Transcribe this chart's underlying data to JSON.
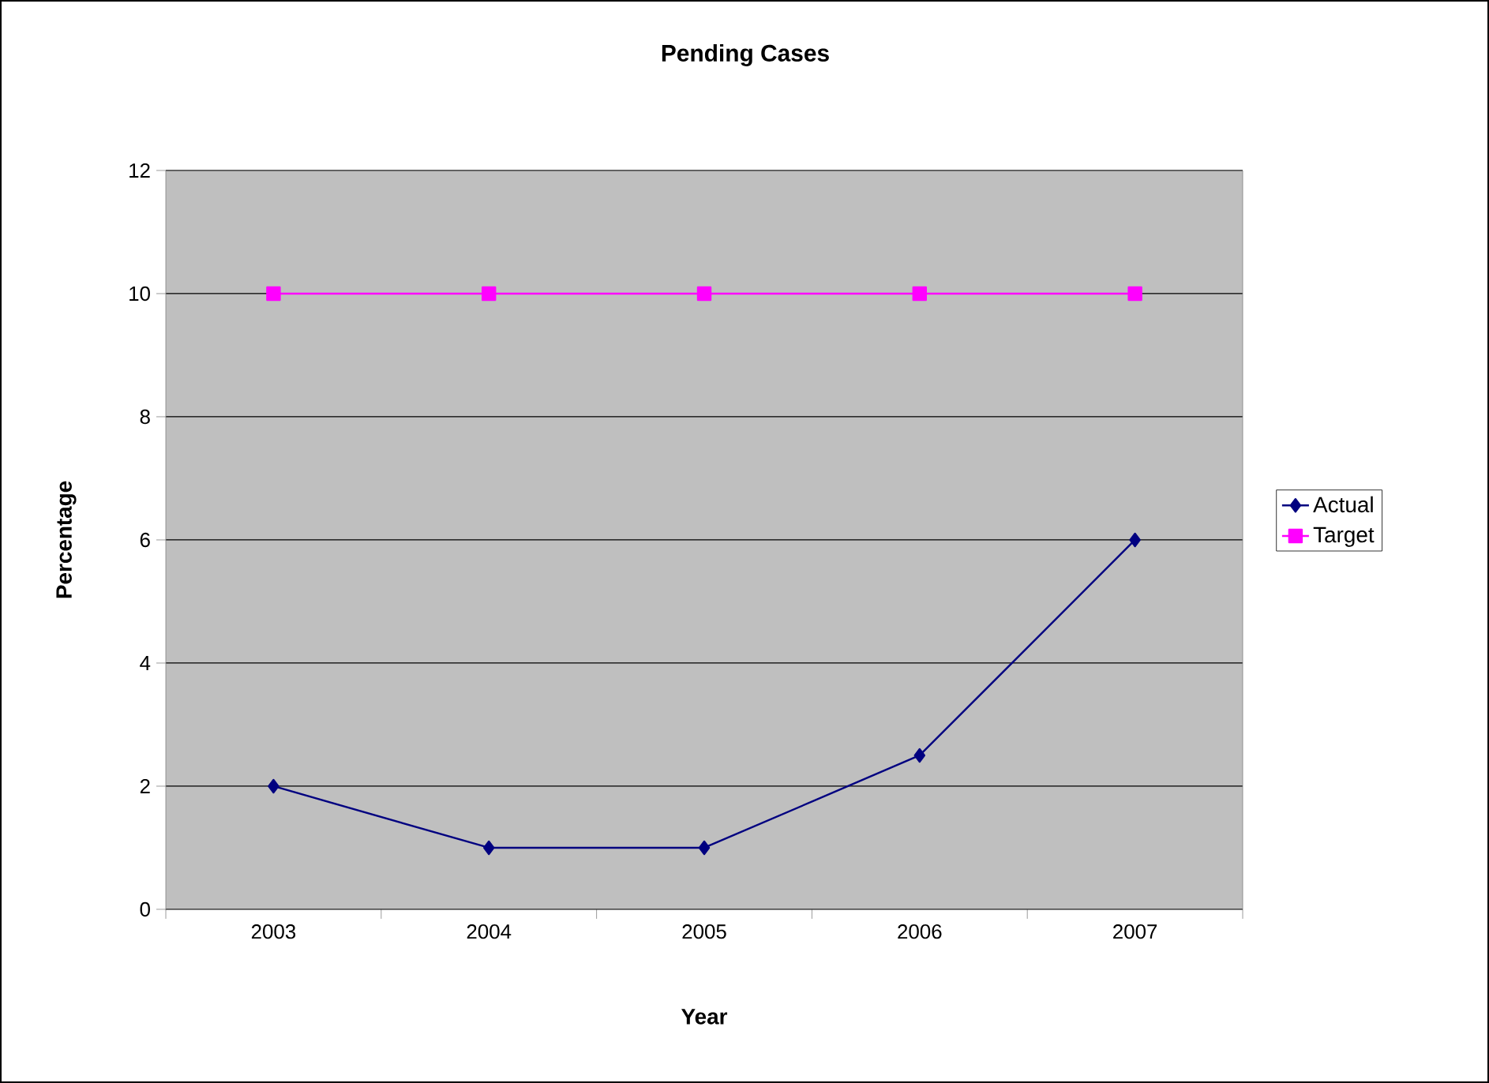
{
  "chart_data": {
    "type": "line",
    "title": "Pending Cases",
    "xlabel": "Year",
    "ylabel": "Percentage",
    "categories": [
      "2003",
      "2004",
      "2005",
      "2006",
      "2007"
    ],
    "series": [
      {
        "name": "Actual",
        "color": "#000080",
        "marker": "diamond",
        "values": [
          2,
          1,
          1,
          2.5,
          6
        ]
      },
      {
        "name": "Target",
        "color": "#ff00ff",
        "marker": "square",
        "values": [
          10,
          10,
          10,
          10,
          10
        ]
      }
    ],
    "ylim": [
      0,
      12
    ],
    "yticks": [
      0,
      2,
      4,
      6,
      8,
      10,
      12
    ],
    "grid": "y",
    "legend": "right"
  }
}
